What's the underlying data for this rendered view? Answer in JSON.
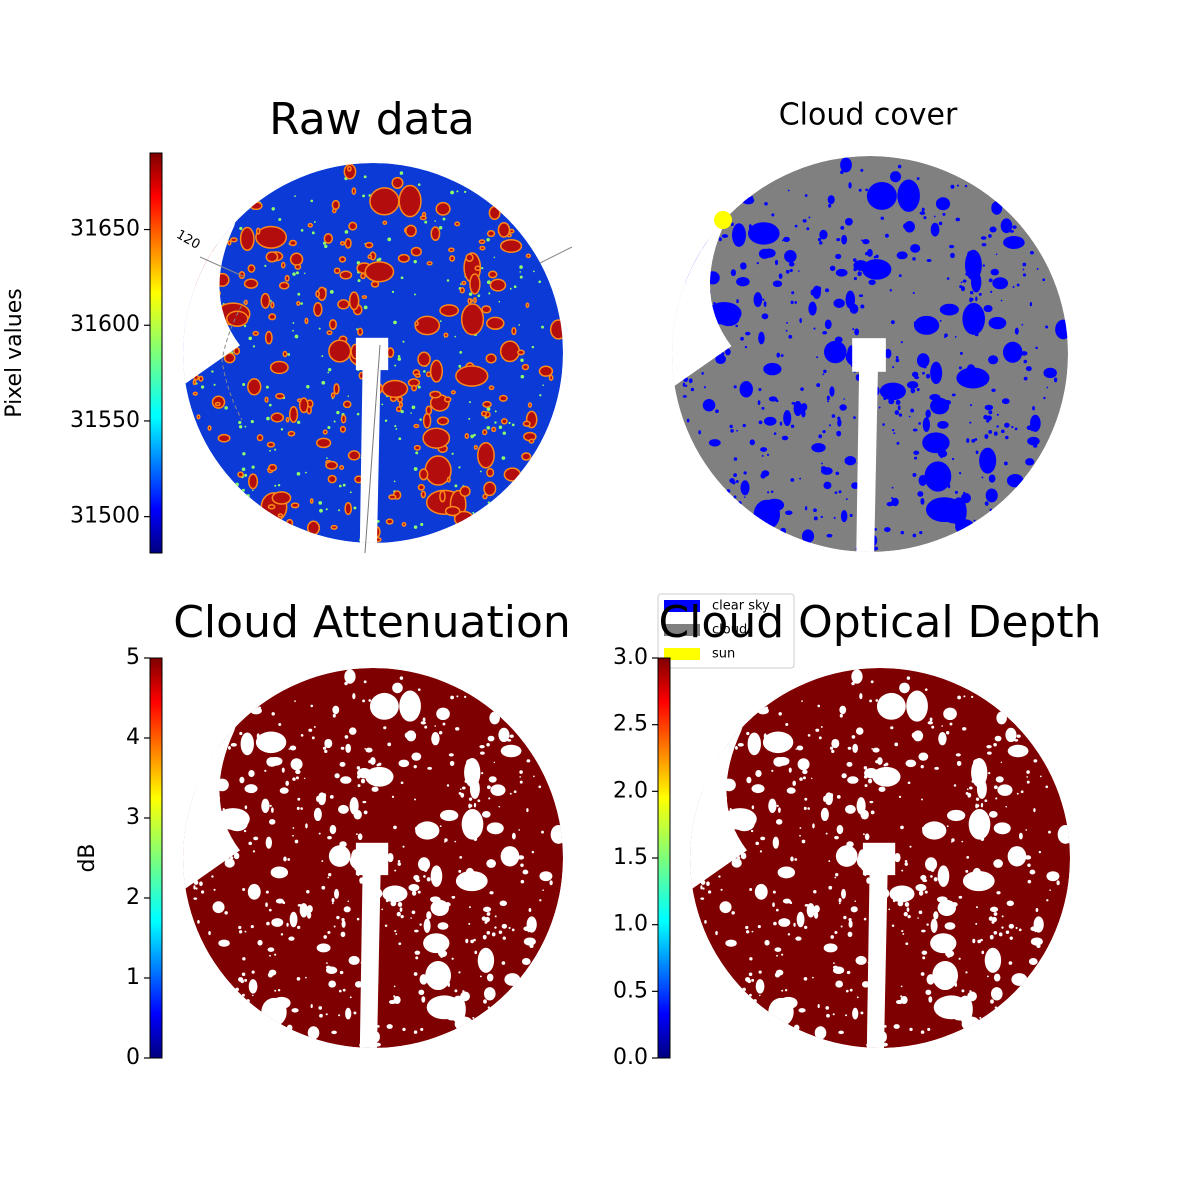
{
  "chart_data": [
    {
      "type": "image",
      "title": "Raw data",
      "colorbar_label": "Pixel values",
      "colormap": "jet",
      "ylim": [
        31481,
        31690
      ],
      "yticks": [
        31500,
        31550,
        31600,
        31650
      ],
      "annotation": "120"
    },
    {
      "type": "image",
      "title": "Cloud cover",
      "legend": [
        {
          "label": "clear sky",
          "color": "#0000ff"
        },
        {
          "label": "cloud",
          "color": "#808080"
        },
        {
          "label": "sun",
          "color": "#ffff00"
        }
      ]
    },
    {
      "type": "image",
      "title": "Cloud Attenuation",
      "colorbar_label": "dB",
      "colormap": "jet",
      "ylim": [
        0,
        5
      ],
      "yticks": [
        0,
        1,
        2,
        3,
        4,
        5
      ]
    },
    {
      "type": "image",
      "title": "Cloud Optical Depth",
      "colormap": "jet",
      "ylim": [
        0,
        3
      ],
      "yticks": [
        {
          "value": 0,
          "label": "0.0"
        },
        0.5,
        {
          "value": 1,
          "label": "1.0"
        },
        1.5,
        {
          "value": 2,
          "label": "2.0"
        },
        2.5,
        {
          "value": 3,
          "label": "3.0"
        }
      ]
    }
  ]
}
